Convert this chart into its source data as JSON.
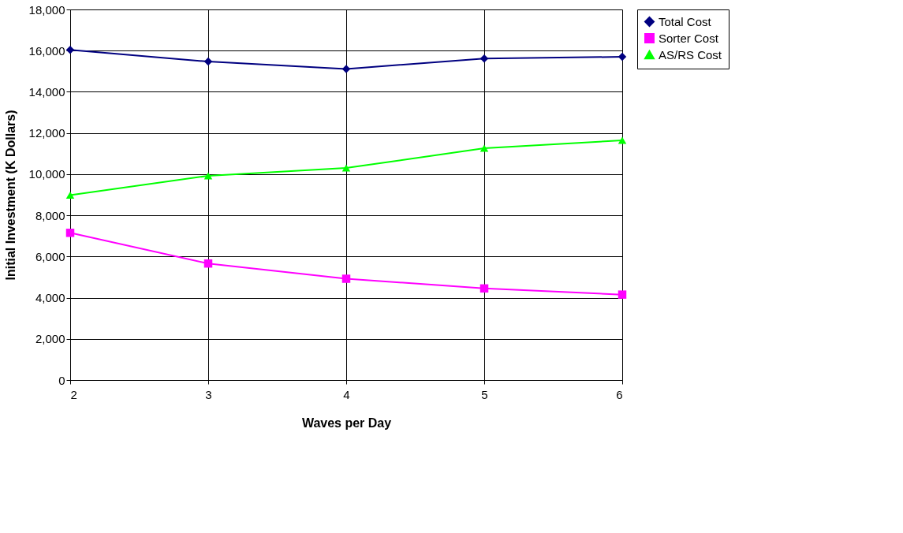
{
  "chart_data": {
    "type": "line",
    "xlabel": "Waves per Day",
    "ylabel": "Initial Investment (K Dollars)",
    "x": [
      2,
      3,
      4,
      5,
      6
    ],
    "xlim": [
      2,
      6
    ],
    "xticks": [
      2,
      3,
      4,
      5,
      6
    ],
    "ylim": [
      0,
      18000
    ],
    "yticks": [
      {
        "value": 0,
        "label": "0"
      },
      {
        "value": 2000,
        "label": "2,000"
      },
      {
        "value": 4000,
        "label": "4,000"
      },
      {
        "value": 6000,
        "label": "6,000"
      },
      {
        "value": 8000,
        "label": "8,000"
      },
      {
        "value": 10000,
        "label": "10,000"
      },
      {
        "value": 12000,
        "label": "12,000"
      },
      {
        "value": 14000,
        "label": "14,000"
      },
      {
        "value": 16000,
        "label": "16,000"
      },
      {
        "value": 18000,
        "label": "18,000"
      }
    ],
    "grid": true,
    "legend": "right",
    "series": [
      {
        "name": "Total Cost",
        "color": "#000080",
        "marker": "diamond",
        "line_style": "solid",
        "values": [
          16040,
          15470,
          15110,
          15620,
          15700
        ]
      },
      {
        "name": "Sorter Cost",
        "color": "#ff00ff",
        "marker": "square",
        "line_style": "solid",
        "values": [
          7150,
          5660,
          4920,
          4450,
          4150
        ]
      },
      {
        "name": "AS/RS Cost",
        "color": "#00ff00",
        "marker": "triangle",
        "line_style": "solid",
        "values": [
          8980,
          9920,
          10300,
          11260,
          11640
        ]
      }
    ]
  }
}
